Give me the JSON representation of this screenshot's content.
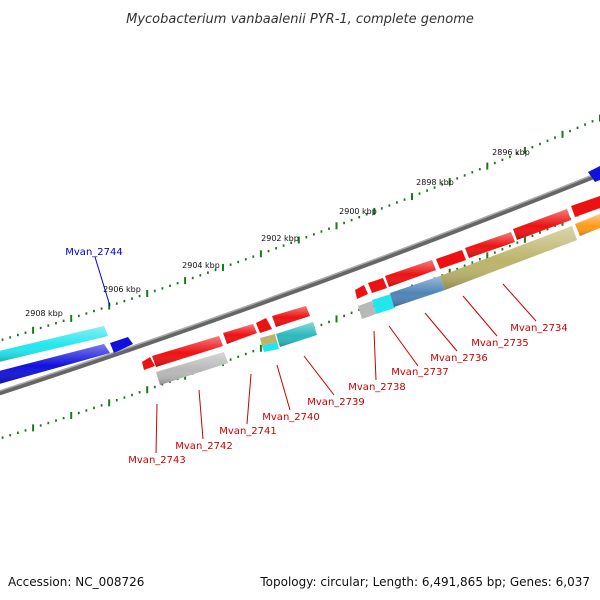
{
  "title": "Mycobacterium vanbaalenii PYR-1, complete genome",
  "footer": {
    "accession": "Accession: NC_008726",
    "topology": "Topology: circular; Length: 6,491,865 bp; Genes: 6,037"
  },
  "ticks": [
    "2896 kbp",
    "2898 kbp",
    "2900 kbp",
    "2902 kbp",
    "2904 kbp",
    "2906 kbp",
    "2908 kbp"
  ],
  "genes": {
    "forward": [
      "Mvan_2744"
    ],
    "reverse": [
      "Mvan_2734",
      "Mvan_2735",
      "Mvan_2736",
      "Mvan_2737",
      "Mvan_2738",
      "Mvan_2739",
      "Mvan_2740",
      "Mvan_2741",
      "Mvan_2742",
      "Mvan_2743"
    ]
  },
  "colors": {
    "forward_label": "#0000cc",
    "reverse_label": "#cc0000",
    "backbone": "#777777",
    "tick_dash": "#1a7a1a",
    "gene_red": "#ee1111",
    "gene_blue": "#1111dd",
    "gene_cyan": "#22e6ee",
    "gene_gray": "#b8b8b8",
    "gene_steel": "#4f84b8",
    "gene_olive": "#bcb46a",
    "gene_orange": "#ff9a1a",
    "gene_teal": "#2ab8bc"
  }
}
